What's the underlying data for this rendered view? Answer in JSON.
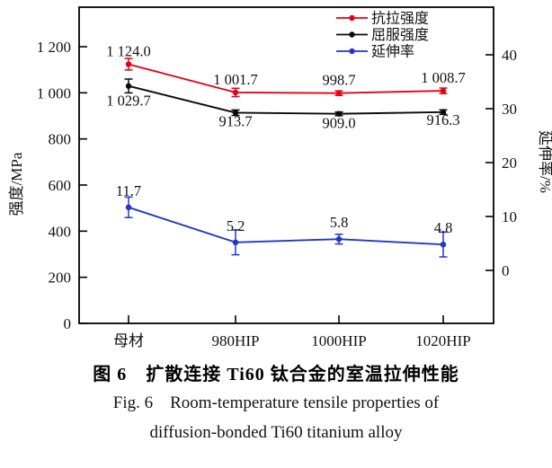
{
  "figure": {
    "caption_zh": "图 6　扩散连接 Ti60 钛合金的室温拉伸性能",
    "caption_en_1": "Fig. 6　Room-temperature tensile properties of",
    "caption_en_2": "diffusion-bonded Ti60 titanium alloy"
  },
  "chart_data": {
    "type": "line",
    "title": "",
    "categories": [
      "母材",
      "980HIP",
      "1000HIP",
      "1020HIP"
    ],
    "left_axis": {
      "label": "强度/MPa",
      "unit": "MPa",
      "min": 0,
      "ticks": [
        0,
        200,
        400,
        600,
        800,
        1000,
        1200
      ],
      "tick_labels": [
        "0",
        "200",
        "400",
        "600",
        "800",
        "1 000",
        "1 200"
      ]
    },
    "right_axis": {
      "label": "延伸率/%",
      "unit": "%",
      "ticks": [
        0,
        10,
        20,
        30,
        40
      ],
      "tick_labels": [
        "0",
        "10",
        "20",
        "30",
        "40"
      ]
    },
    "grid": false,
    "legend_position": "top-right-inside",
    "series": [
      {
        "name": "抗拉强度",
        "axis": "left",
        "color": "#e60012",
        "values": [
          1124.0,
          1001.7,
          998.7,
          1008.7
        ],
        "labels": [
          "1 124.0",
          "1 001.7",
          "998.7",
          "1 008.7"
        ],
        "errors": [
          25,
          18,
          10,
          12
        ],
        "label_dy": [
          -9,
          -9,
          -9,
          -9
        ]
      },
      {
        "name": "屈服强度",
        "axis": "left",
        "color": "#0a0a0a",
        "values": [
          1029.7,
          913.7,
          909.0,
          916.3
        ],
        "labels": [
          "1 029.7",
          "913.7",
          "909.0",
          "916.3"
        ],
        "errors": [
          30,
          12,
          8,
          10
        ],
        "label_dy": [
          22,
          15,
          16,
          14
        ]
      },
      {
        "name": "延伸率",
        "axis": "right",
        "color": "#2336cc",
        "values": [
          11.7,
          5.2,
          5.8,
          4.8
        ],
        "labels": [
          "11.7",
          "5.2",
          "5.8",
          "4.8"
        ],
        "errors": [
          1.9,
          2.3,
          0.9,
          2.3
        ],
        "label_dy": [
          -13,
          -13,
          -13,
          -13
        ]
      }
    ]
  }
}
